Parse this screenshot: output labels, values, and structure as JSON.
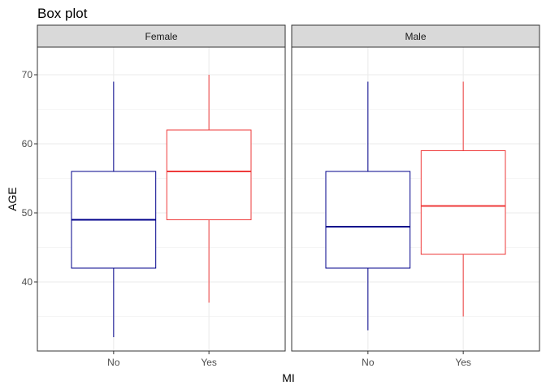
{
  "chart_data": {
    "type": "boxplot",
    "title": "Box plot",
    "xlabel": "MI",
    "ylabel": "AGE",
    "ylim": [
      30,
      74
    ],
    "yticks": [
      40,
      50,
      60,
      70
    ],
    "categories": [
      "No",
      "Yes"
    ],
    "category_colors": {
      "No": "#00008b",
      "Yes": "#ee3b3b"
    },
    "grid": true,
    "facets": [
      {
        "label": "Female",
        "boxes": [
          {
            "category": "No",
            "min": 32,
            "q1": 42,
            "median": 49,
            "q3": 56,
            "max": 69
          },
          {
            "category": "Yes",
            "min": 37,
            "q1": 49,
            "median": 56,
            "q3": 62,
            "max": 70
          }
        ]
      },
      {
        "label": "Male",
        "boxes": [
          {
            "category": "No",
            "min": 33,
            "q1": 42,
            "median": 48,
            "q3": 56,
            "max": 69
          },
          {
            "category": "Yes",
            "min": 35,
            "q1": 44,
            "median": 51,
            "q3": 59,
            "max": 69
          }
        ]
      }
    ]
  }
}
